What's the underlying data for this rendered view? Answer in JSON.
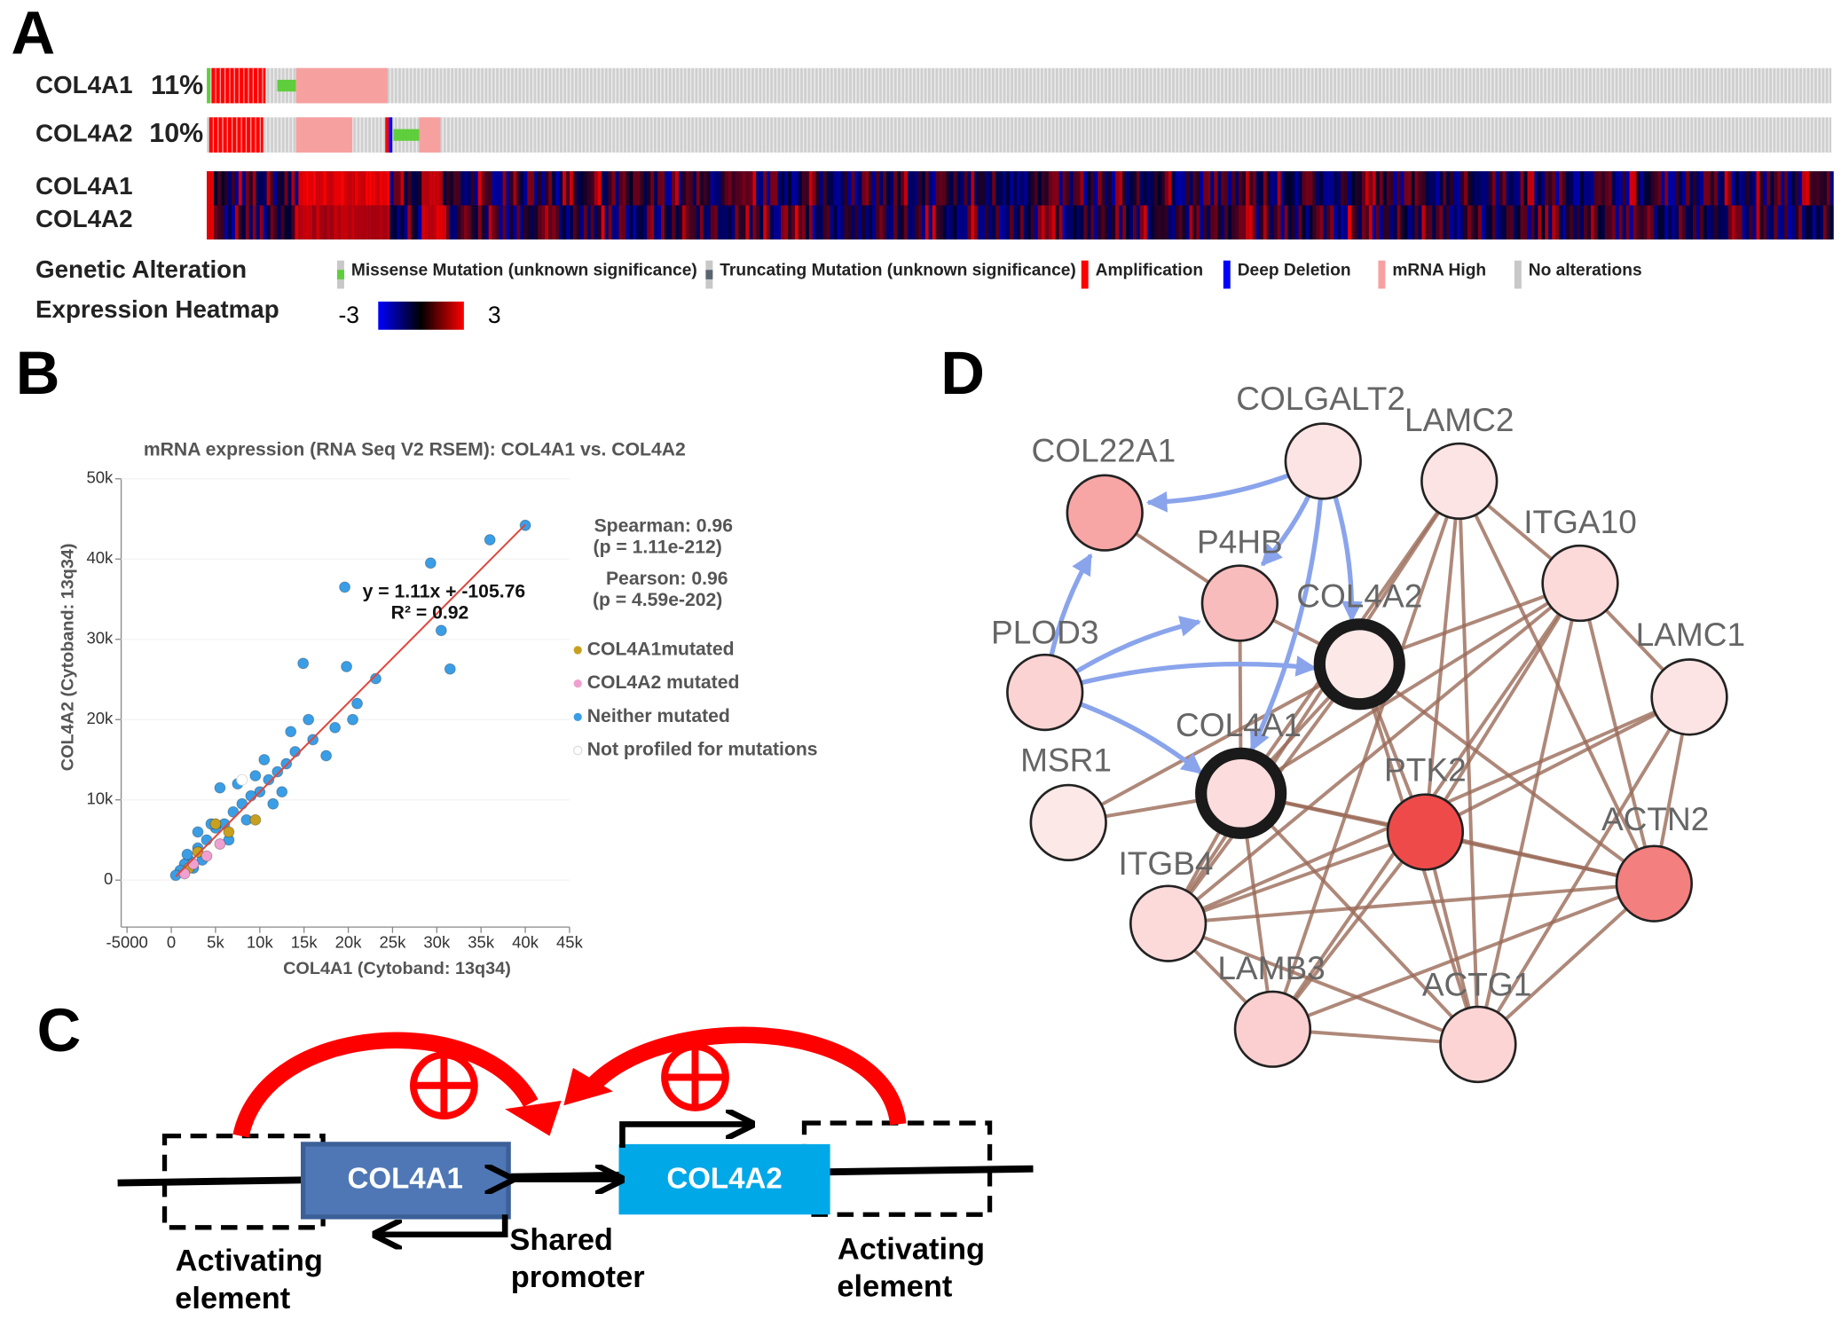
{
  "panel_labels": [
    "A",
    "B",
    "C",
    "D"
  ],
  "oncoprint": {
    "rows": [
      {
        "gene": "COL4A1",
        "percent": "11%"
      },
      {
        "gene": "COL4A2",
        "percent": "10%"
      }
    ],
    "heatmap_genes": [
      "COL4A1",
      "COL4A2"
    ],
    "legend_title": "Genetic Alteration",
    "legend": [
      {
        "name": "Missense Mutation (unknown significance)",
        "color": "#5fce3c"
      },
      {
        "name": "Truncating Mutation (unknown significance)",
        "color": "#5a6470"
      },
      {
        "name": "Amplification",
        "color": "#ff0000"
      },
      {
        "name": "Deep Deletion",
        "color": "#0000ff"
      },
      {
        "name": "mRNA High",
        "color": "#f7a0a0"
      },
      {
        "name": "No alterations",
        "color": "#c8c8c8"
      }
    ],
    "heatmap_title": "Expression Heatmap",
    "heatmap_range": [
      -3,
      3
    ]
  },
  "chart_data": {
    "type": "scatter",
    "title": "mRNA expression (RNA Seq V2 RSEM): COL4A1 vs. COL4A2",
    "xlabel": "COL4A1 (Cytoband: 13q34)",
    "ylabel": "COL4A2 (Cytoband: 13q34)",
    "xlim": [
      -5000,
      45000
    ],
    "ylim": [
      0,
      50000
    ],
    "xticks": [
      -5000,
      0,
      {
        "value": 5000,
        "label": "5k"
      },
      {
        "value": 10000,
        "label": "10k"
      },
      {
        "value": 15000,
        "label": "15k"
      },
      {
        "value": 20000,
        "label": "20k"
      },
      {
        "value": 25000,
        "label": "25k"
      },
      {
        "value": 30000,
        "label": "30k"
      },
      {
        "value": 35000,
        "label": "35k"
      },
      {
        "value": 40000,
        "label": "40k"
      },
      {
        "value": 45000,
        "label": "45k"
      }
    ],
    "yticks": [
      0,
      {
        "value": 10000,
        "label": "10k"
      },
      {
        "value": 20000,
        "label": "20k"
      },
      {
        "value": 30000,
        "label": "30k"
      },
      {
        "value": 40000,
        "label": "40k"
      },
      {
        "value": 50000,
        "label": "50k"
      }
    ],
    "annotations": {
      "fit_equation": "y = 1.11x + -105.76",
      "r_squared": "R² = 0.92",
      "spearman": "Spearman: 0.96",
      "spearman_p": "(p = 1.11e-212)",
      "pearson": "Pearson: 0.96",
      "pearson_p": "(p = 4.59e-202)"
    },
    "fit": {
      "slope": 1.11,
      "intercept": -105.76,
      "color": "#e0463c"
    },
    "series": [
      {
        "name": "Neither mutated",
        "color": "#3a9ee6",
        "x": [
          40000,
          36000,
          29300,
          19600,
          30500,
          31500,
          23100,
          14900,
          19800,
          21000,
          18500,
          20500,
          16000,
          14000,
          17500,
          13000,
          12000,
          11000,
          10000,
          9000,
          8000,
          12500,
          7000,
          6000,
          5000,
          4000,
          3000,
          2000,
          1500,
          1000,
          500,
          2500,
          6500,
          8500,
          4500,
          3500,
          9500,
          11500,
          15500,
          5500,
          7500,
          13500,
          10500,
          3000,
          1800
        ],
        "values": [
          44200,
          42400,
          39500,
          36500,
          31100,
          26300,
          25100,
          27000,
          26600,
          22000,
          19000,
          20000,
          17500,
          16000,
          15500,
          14500,
          13500,
          12500,
          11000,
          10500,
          9500,
          11000,
          8500,
          7000,
          6500,
          5000,
          4000,
          2500,
          2000,
          1200,
          600,
          1500,
          5000,
          7500,
          7000,
          2500,
          13000,
          9500,
          20000,
          11500,
          12000,
          18500,
          15000,
          6000,
          3200
        ]
      },
      {
        "name": "COL4A1mutated",
        "color": "#c8a020",
        "x": [
          5000,
          3000,
          6500,
          9500,
          2000
        ],
        "values": [
          7000,
          3500,
          6000,
          7500,
          1500
        ]
      },
      {
        "name": "COL4A2 mutated",
        "color": "#f0a0d0",
        "x": [
          4000,
          2500,
          5500,
          1500
        ],
        "values": [
          3000,
          2000,
          4500,
          800
        ]
      },
      {
        "name": "Not profiled for mutations",
        "color": "#ffffff",
        "x": [
          8000
        ],
        "values": [
          12500
        ]
      }
    ]
  },
  "diagram": {
    "genes": [
      "COL4A1",
      "COL4A2"
    ],
    "annotations": [
      [
        "Activating",
        "element"
      ],
      [
        "Shared",
        "promoter"
      ],
      [
        "Activating",
        "element"
      ]
    ]
  },
  "network": {
    "nodes": [
      {
        "label": "COLGALT2",
        "color": "#fde4e4"
      },
      {
        "label": "COL22A1",
        "color": "#f7a5a5"
      },
      {
        "label": "LAMC2",
        "color": "#fde4e4"
      },
      {
        "label": "P4HB",
        "color": "#f9bcbc"
      },
      {
        "label": "ITGA10",
        "color": "#fcdada"
      },
      {
        "label": "COL4A2",
        "color": "#fde8e8",
        "ring": true
      },
      {
        "label": "PLOD3",
        "color": "#fbd3d3"
      },
      {
        "label": "LAMC1",
        "color": "#fde4e4"
      },
      {
        "label": "MSR1",
        "color": "#fde8e8"
      },
      {
        "label": "COL4A1",
        "color": "#fcdcdc",
        "ring": true
      },
      {
        "label": "PTK2",
        "color": "#ef4a4a"
      },
      {
        "label": "ACTN2",
        "color": "#f47f7f"
      },
      {
        "label": "ITGB4",
        "color": "#fcdada"
      },
      {
        "label": "LAMB3",
        "color": "#fbcfcf"
      },
      {
        "label": "ACTG1",
        "color": "#fcd4d4"
      }
    ]
  }
}
